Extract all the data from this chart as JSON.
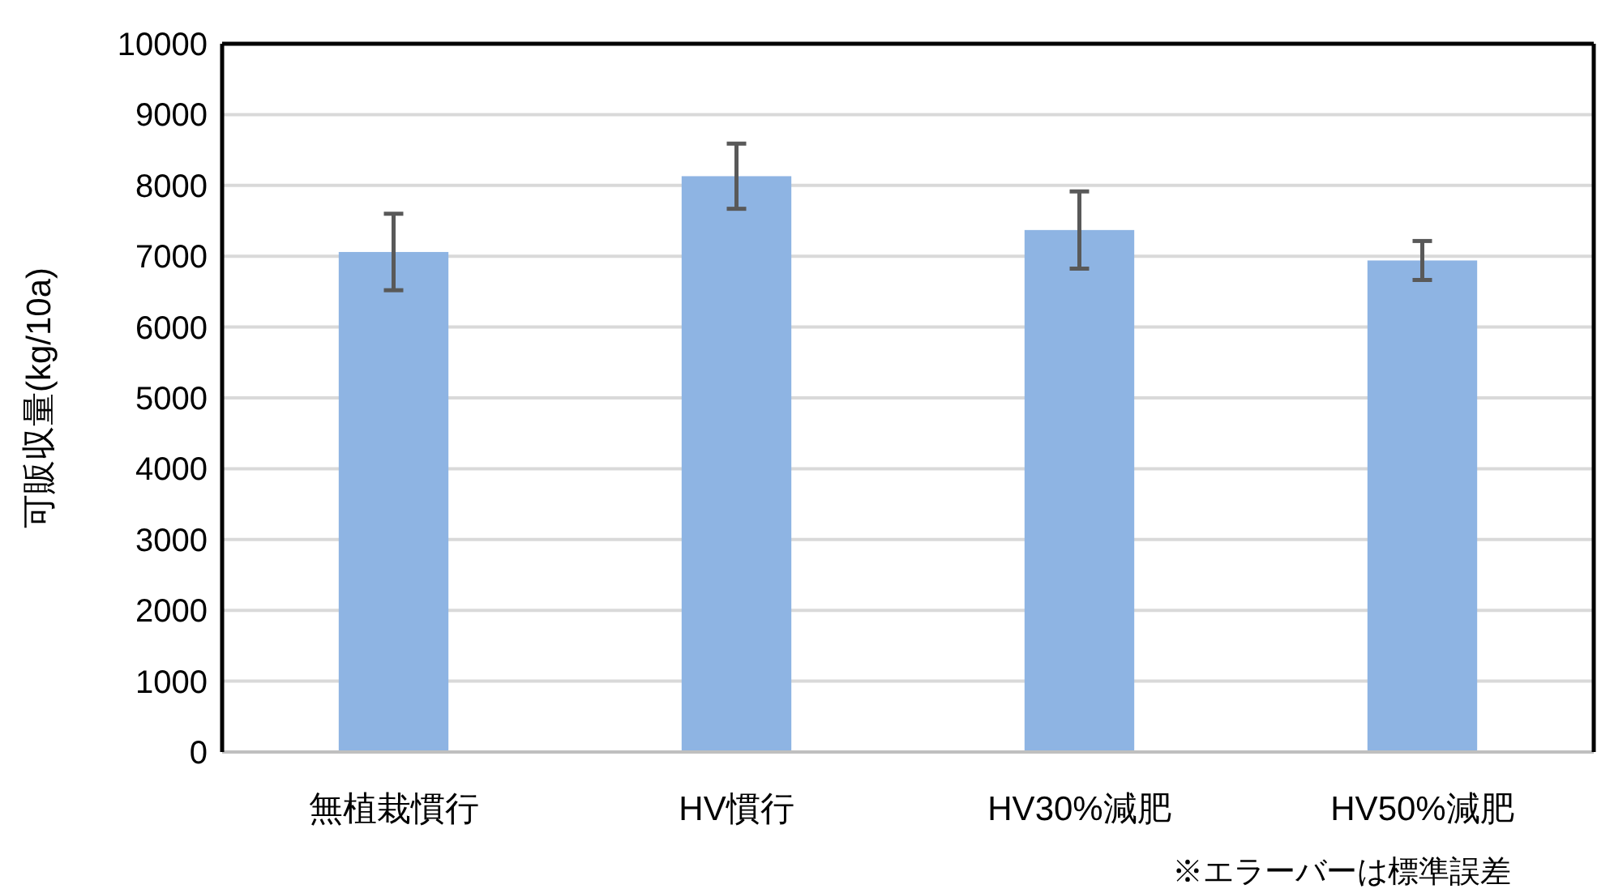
{
  "chart_data": {
    "type": "bar",
    "ylabel": "可販収量(kg/10a)",
    "categories": [
      "無植栽慣行",
      "HV慣行",
      "HV30%減肥",
      "HV50%減肥"
    ],
    "values": [
      7060,
      8130,
      7370,
      6940
    ],
    "errors": [
      540,
      460,
      545,
      275
    ],
    "color": "#8eb4e3",
    "ylim": [
      0,
      10000
    ],
    "yticks": [
      0,
      1000,
      2000,
      3000,
      4000,
      5000,
      6000,
      7000,
      8000,
      9000,
      10000
    ],
    "grid": "y",
    "annotations": [
      "※エラーバーは標準誤差"
    ]
  }
}
